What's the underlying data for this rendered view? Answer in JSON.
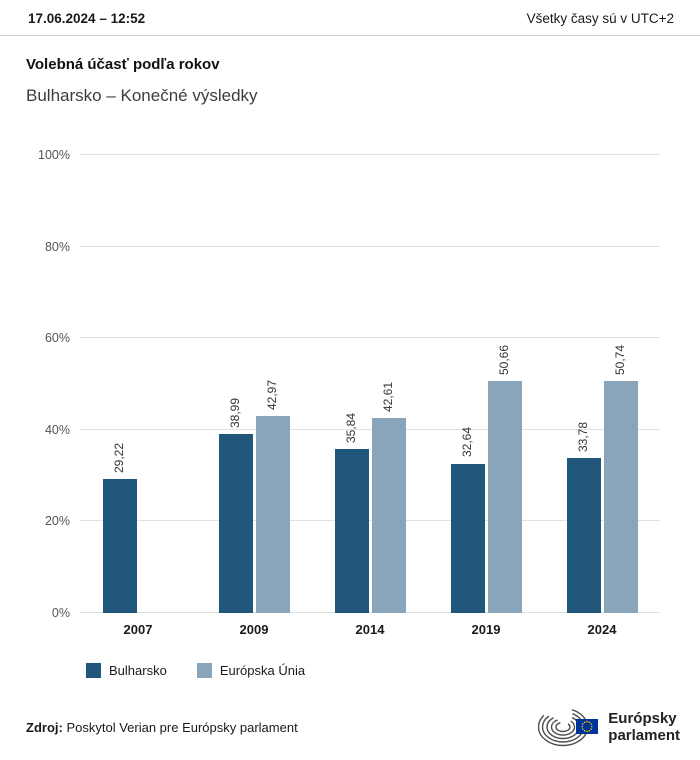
{
  "header": {
    "datetime": "17.06.2024 – 12:52",
    "timezone_note": "Všetky časy sú v UTC+2"
  },
  "chart": {
    "title": "Volebná účasť podľa rokov",
    "subtitle": "Bulharsko – Konečné výsledky",
    "legend": [
      {
        "label": "Bulharsko",
        "color": "#1f567a"
      },
      {
        "label": "Európska Únia",
        "color": "#8aa4ba"
      }
    ]
  },
  "chart_data": {
    "type": "bar",
    "categories": [
      "2007",
      "2009",
      "2014",
      "2019",
      "2024"
    ],
    "series": [
      {
        "name": "Bulharsko",
        "color": "#1f567a",
        "values": [
          29.22,
          38.99,
          35.84,
          32.64,
          33.78
        ],
        "labels": [
          "29,22",
          "38,99",
          "35,84",
          "32,64",
          "33,78"
        ]
      },
      {
        "name": "Európska Únia",
        "color": "#8aa4ba",
        "values": [
          null,
          42.97,
          42.61,
          50.66,
          50.74
        ],
        "labels": [
          "",
          "42,97",
          "42,61",
          "50,66",
          "50,74"
        ]
      }
    ],
    "ylim": [
      0,
      100
    ],
    "yticks": [
      "0%",
      "20%",
      "40%",
      "60%",
      "80%",
      "100%"
    ],
    "grid": true,
    "legend_position": "bottom"
  },
  "footer": {
    "source_label": "Zdroj:",
    "source_text": "Poskytol Verian pre Európsky parlament",
    "logo_text_line1": "Európsky",
    "logo_text_line2": "parlament"
  }
}
